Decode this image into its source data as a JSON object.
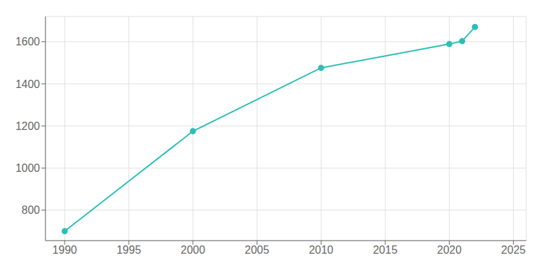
{
  "chart_data": {
    "type": "line",
    "x": [
      1990,
      2000,
      2010,
      2020,
      2021,
      2022
    ],
    "values": [
      700,
      1175,
      1476,
      1589,
      1603,
      1670
    ],
    "color": "#2bbfb8",
    "marker": "o",
    "xlim": [
      1988.5,
      2026
    ],
    "ylim": [
      655,
      1720
    ],
    "xticks": [
      1990,
      1995,
      2000,
      2005,
      2010,
      2015,
      2020,
      2025
    ],
    "yticks": [
      800,
      1000,
      1200,
      1400,
      1600
    ],
    "grid": true
  }
}
